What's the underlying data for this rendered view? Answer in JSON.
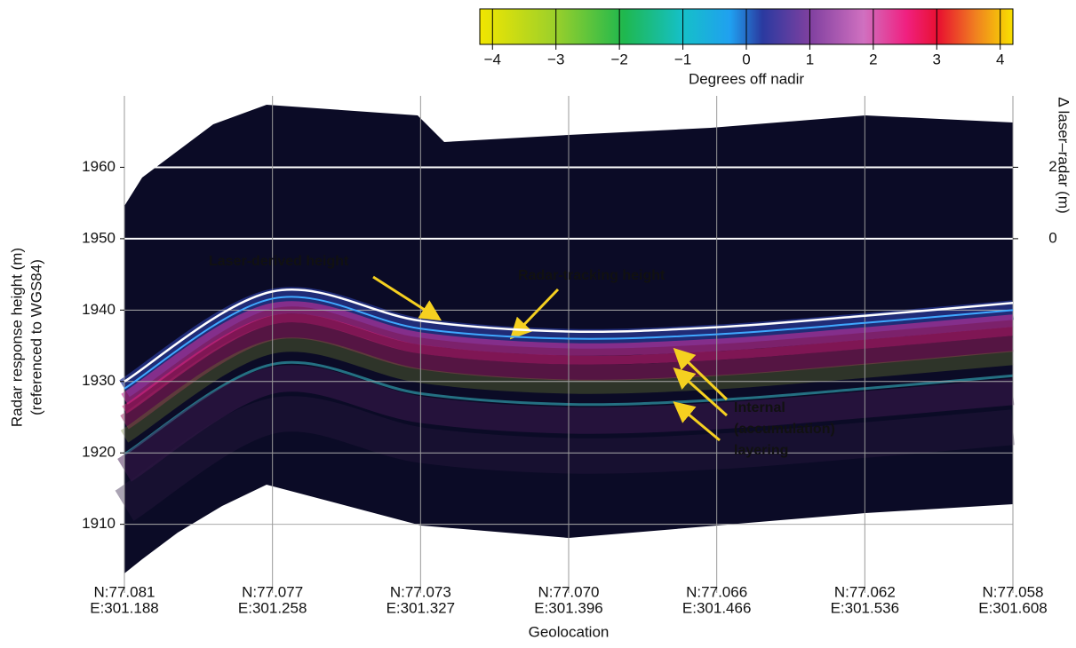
{
  "chart_data": {
    "type": "echogram",
    "colorbar": {
      "label": "Degrees off nadir",
      "lim": [
        -4.2,
        4.2
      ],
      "ticks": [
        {
          "value": -4,
          "label": "−4"
        },
        {
          "value": -3,
          "label": "−3"
        },
        {
          "value": -2,
          "label": "−2"
        },
        {
          "value": -1,
          "label": "−1"
        },
        0,
        1,
        2,
        3,
        4
      ]
    },
    "ylabel": "Radar response height (m)",
    "ylabel_sub": "(referenced to WGS84)",
    "ylim": [
      1902,
      1970
    ],
    "yticks": [
      1910,
      1920,
      1930,
      1940,
      1950,
      1960
    ],
    "y2label": "Δ laser–radar (m)",
    "y2lim": [
      -9.6,
      4
    ],
    "y2ticks": [
      0,
      2
    ],
    "xlabel": "Geolocation",
    "categories": [
      {
        "lat": "N:77.081",
        "lon": "E:301.188"
      },
      {
        "lat": "N:77.077",
        "lon": "E:301.258"
      },
      {
        "lat": "N:77.073",
        "lon": "E:301.327"
      },
      {
        "lat": "N:77.070",
        "lon": "E:301.396"
      },
      {
        "lat": "N:77.066",
        "lon": "E:301.466"
      },
      {
        "lat": "N:77.062",
        "lon": "E:301.536"
      },
      {
        "lat": "N:77.058",
        "lon": "E:301.608"
      }
    ],
    "series": [
      {
        "name": "Laser-derived height",
        "color": "#ffffff",
        "values": [
          1930,
          1942.6,
          1938.5,
          1937,
          1937.6,
          1939.2,
          1941
        ]
      },
      {
        "name": "Radar-tracking height",
        "color": "#3fa8ff",
        "values": [
          1929,
          1941.6,
          1937.4,
          1936,
          1936.6,
          1938.2,
          1940
        ]
      }
    ],
    "annotation_lines": [
      "Internal",
      "(accumulation)",
      "layering"
    ],
    "annotation_color": "#f5d020"
  }
}
